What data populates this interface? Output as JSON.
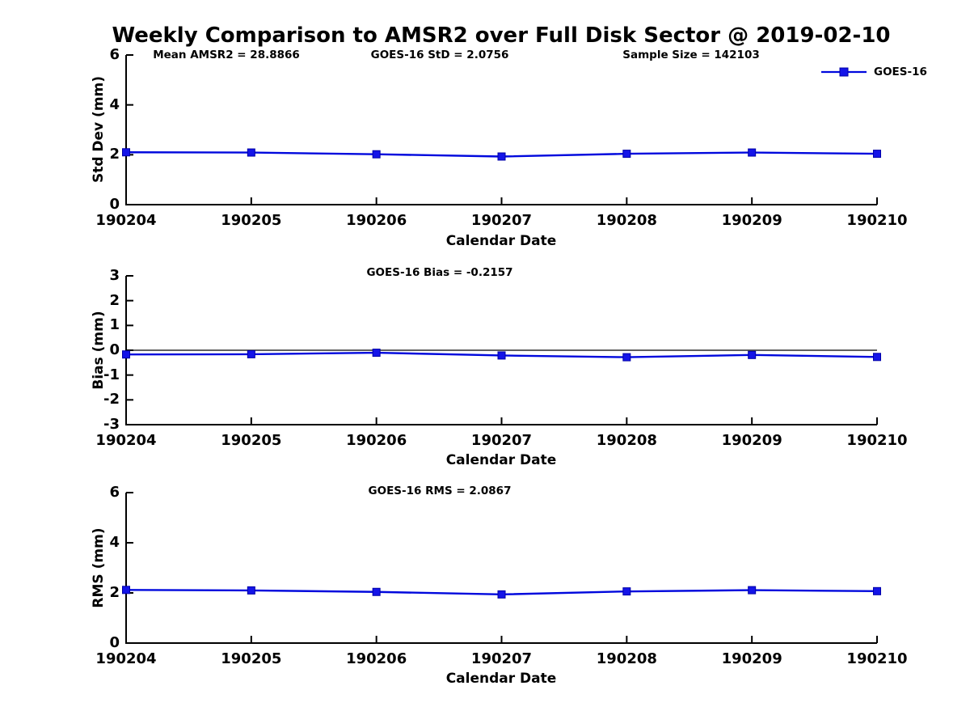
{
  "title": "Weekly Comparison to AMSR2 over Full Disk Sector @ 2019-02-10",
  "legend": {
    "label": "GOES-16"
  },
  "colors": {
    "line": "#0008DD",
    "marker_fill": "#1414E8",
    "marker_edge": "#0000A8",
    "axis": "#000000",
    "zero_line": "#000000",
    "text": "#000000"
  },
  "chart_data": [
    {
      "type": "line",
      "name": "std-dev",
      "categories": [
        "190204",
        "190205",
        "190206",
        "190207",
        "190208",
        "190209",
        "190210"
      ],
      "series": [
        {
          "name": "GOES-16",
          "values": [
            2.1,
            2.09,
            2.02,
            1.93,
            2.04,
            2.09,
            2.04
          ]
        }
      ],
      "xlabel": "Calendar Date",
      "ylabel": "Std Dev (mm)",
      "ylim": [
        0,
        6
      ],
      "yticks": [
        0,
        2,
        4,
        6
      ],
      "grid": false,
      "zero_line": false,
      "legend_position": "upper-right-outside-plot",
      "annotations": [
        {
          "text": "Mean AMSR2 = 28.8866"
        },
        {
          "text": "GOES-16 StD = 2.0756"
        },
        {
          "text": "Sample Size = 142103"
        }
      ]
    },
    {
      "type": "line",
      "name": "bias",
      "categories": [
        "190204",
        "190205",
        "190206",
        "190207",
        "190208",
        "190209",
        "190210"
      ],
      "series": [
        {
          "name": "GOES-16",
          "values": [
            -0.17,
            -0.16,
            -0.1,
            -0.21,
            -0.28,
            -0.19,
            -0.27
          ]
        }
      ],
      "xlabel": "Calendar Date",
      "ylabel": "Bias (mm)",
      "ylim": [
        -3,
        3
      ],
      "yticks": [
        -3,
        -2,
        -1,
        0,
        1,
        2,
        3
      ],
      "grid": false,
      "zero_line": true,
      "annotations": [
        {
          "text": "GOES-16 Bias  = -0.2157"
        }
      ]
    },
    {
      "type": "line",
      "name": "rms",
      "categories": [
        "190204",
        "190205",
        "190206",
        "190207",
        "190208",
        "190209",
        "190210"
      ],
      "series": [
        {
          "name": "GOES-16",
          "values": [
            2.12,
            2.1,
            2.04,
            1.94,
            2.06,
            2.11,
            2.07
          ]
        }
      ],
      "xlabel": "Calendar Date",
      "ylabel": "RMS (mm)",
      "ylim": [
        0,
        6
      ],
      "yticks": [
        0,
        2,
        4,
        6
      ],
      "grid": false,
      "zero_line": false,
      "annotations": [
        {
          "text": "GOES-16 RMS = 2.0867"
        }
      ]
    }
  ]
}
